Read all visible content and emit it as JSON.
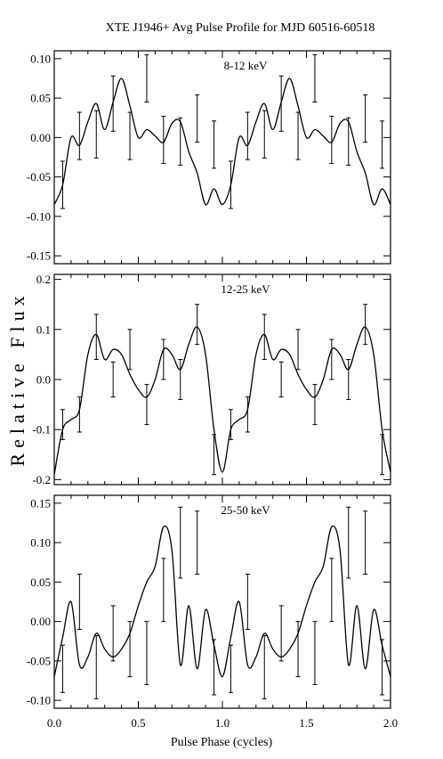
{
  "title": "XTE J1946+ Avg Pulse Profile for MJD 60516-60518",
  "ylabel": "Relative Flux",
  "xlabel": "Pulse Phase (cycles)",
  "chart_data": [
    {
      "type": "line",
      "label": "8-12 keV",
      "xlim": [
        0,
        2
      ],
      "ylim": [
        -0.16,
        0.11
      ],
      "yticks": [
        -0.15,
        -0.1,
        -0.05,
        0.0,
        0.05,
        0.1
      ],
      "ytick_labels": [
        "-0.15",
        "-0.10",
        "-0.05",
        "0.00",
        "0.05",
        "0.10"
      ],
      "points": {
        "x": [
          0.05,
          0.15,
          0.25,
          0.35,
          0.45,
          0.55,
          0.65,
          0.75,
          0.85,
          0.95
        ],
        "y": [
          -0.06,
          0.002,
          0.004,
          0.043,
          0.002,
          0.075,
          -0.003,
          -0.005,
          0.024,
          -0.009
        ],
        "err": [
          0.03,
          0.03,
          0.03,
          0.035,
          0.03,
          0.03,
          0.03,
          0.03,
          0.03,
          0.03
        ]
      },
      "curve": {
        "x": [
          0,
          0.05,
          0.1,
          0.15,
          0.2,
          0.25,
          0.3,
          0.35,
          0.4,
          0.45,
          0.5,
          0.55,
          0.6,
          0.65,
          0.7,
          0.75,
          0.8,
          0.85,
          0.9,
          0.95,
          1.0,
          1.05,
          1.1,
          1.15,
          1.2,
          1.25,
          1.3,
          1.35,
          1.4,
          1.45,
          1.5,
          1.55,
          1.6,
          1.65,
          1.7,
          1.75,
          1.8,
          1.85,
          1.9,
          1.95,
          2.0
        ],
        "y": [
          -0.085,
          -0.06,
          0.0,
          -0.01,
          0.02,
          0.043,
          0.01,
          0.045,
          0.075,
          0.04,
          0.0,
          0.01,
          0.002,
          -0.006,
          0.018,
          0.02,
          -0.018,
          -0.045,
          -0.085,
          -0.065,
          -0.085,
          -0.06,
          0.0,
          -0.01,
          0.02,
          0.043,
          0.01,
          0.045,
          0.075,
          0.04,
          0.0,
          0.01,
          0.002,
          -0.006,
          0.018,
          0.02,
          -0.018,
          -0.045,
          -0.085,
          -0.065,
          -0.085
        ]
      }
    },
    {
      "type": "line",
      "label": "12-25 keV",
      "xlim": [
        0,
        2
      ],
      "ylim": [
        -0.21,
        0.21
      ],
      "yticks": [
        -0.2,
        -0.1,
        0.0,
        0.1,
        0.2
      ],
      "ytick_labels": [
        "-0.2",
        "-0.1",
        "0.0",
        "0.1",
        "0.2"
      ],
      "points": {
        "x": [
          0.05,
          0.15,
          0.25,
          0.35,
          0.45,
          0.55,
          0.65,
          0.75,
          0.85,
          0.95
        ],
        "y": [
          -0.09,
          -0.07,
          0.085,
          0.0,
          0.06,
          -0.05,
          0.04,
          0.0,
          0.11,
          -0.15
        ],
        "err": [
          0.03,
          0.035,
          0.045,
          0.035,
          0.04,
          0.04,
          0.04,
          0.04,
          0.04,
          0.04
        ]
      },
      "curve": {
        "x": [
          0,
          0.05,
          0.1,
          0.15,
          0.2,
          0.25,
          0.3,
          0.35,
          0.4,
          0.45,
          0.5,
          0.55,
          0.6,
          0.65,
          0.7,
          0.75,
          0.8,
          0.85,
          0.9,
          0.95,
          1.0,
          1.05,
          1.1,
          1.15,
          1.2,
          1.25,
          1.3,
          1.35,
          1.4,
          1.45,
          1.5,
          1.55,
          1.6,
          1.65,
          1.7,
          1.75,
          1.8,
          1.85,
          1.9,
          1.95,
          2.0
        ],
        "y": [
          -0.19,
          -0.1,
          -0.08,
          -0.06,
          0.05,
          0.09,
          0.04,
          0.06,
          0.05,
          0.01,
          -0.02,
          -0.035,
          0.0,
          0.06,
          0.05,
          0.02,
          0.07,
          0.105,
          0.05,
          -0.1,
          -0.185,
          -0.1,
          -0.08,
          -0.06,
          0.05,
          0.09,
          0.04,
          0.06,
          0.05,
          0.01,
          -0.02,
          -0.035,
          0.0,
          0.06,
          0.05,
          0.02,
          0.07,
          0.105,
          0.05,
          -0.1,
          -0.185
        ]
      }
    },
    {
      "type": "line",
      "label": "25-50 keV",
      "xlim": [
        0,
        2
      ],
      "ylim": [
        -0.11,
        0.16
      ],
      "yticks": [
        -0.1,
        -0.05,
        0.0,
        0.05,
        0.1,
        0.15
      ],
      "ytick_labels": [
        "-0.10",
        "-0.05",
        "0.00",
        "0.05",
        "0.10",
        "0.15"
      ],
      "points": {
        "x": [
          0.05,
          0.15,
          0.25,
          0.35,
          0.45,
          0.55,
          0.65,
          0.75,
          0.85,
          0.95
        ],
        "y": [
          -0.06,
          0.025,
          -0.058,
          -0.015,
          -0.035,
          -0.04,
          0.04,
          0.1,
          0.1,
          -0.058
        ],
        "err": [
          0.03,
          0.035,
          0.04,
          0.035,
          0.035,
          0.04,
          0.04,
          0.045,
          0.04,
          0.035
        ]
      },
      "curve": {
        "x": [
          0,
          0.05,
          0.1,
          0.15,
          0.2,
          0.25,
          0.3,
          0.35,
          0.4,
          0.45,
          0.5,
          0.55,
          0.6,
          0.65,
          0.7,
          0.75,
          0.8,
          0.85,
          0.9,
          0.95,
          1.0,
          1.05,
          1.1,
          1.15,
          1.2,
          1.25,
          1.3,
          1.35,
          1.4,
          1.45,
          1.5,
          1.55,
          1.6,
          1.65,
          1.7,
          1.75,
          1.8,
          1.85,
          1.9,
          1.95,
          2.0
        ],
        "y": [
          -0.07,
          -0.02,
          0.025,
          -0.055,
          -0.045,
          -0.015,
          -0.035,
          -0.045,
          -0.035,
          -0.015,
          0.02,
          0.05,
          0.07,
          0.12,
          0.09,
          -0.055,
          0.02,
          -0.06,
          0.015,
          -0.03,
          -0.07,
          -0.02,
          0.025,
          -0.055,
          -0.045,
          -0.015,
          -0.035,
          -0.045,
          -0.035,
          -0.015,
          0.02,
          0.05,
          0.07,
          0.12,
          0.09,
          -0.055,
          0.02,
          -0.06,
          0.015,
          -0.03,
          -0.07
        ]
      }
    }
  ],
  "xaxis": {
    "xticks": [
      0.0,
      0.5,
      1.0,
      1.5,
      2.0
    ],
    "xtick_labels": [
      "0.0",
      "0.5",
      "1.0",
      "1.5",
      "2.0"
    ]
  }
}
